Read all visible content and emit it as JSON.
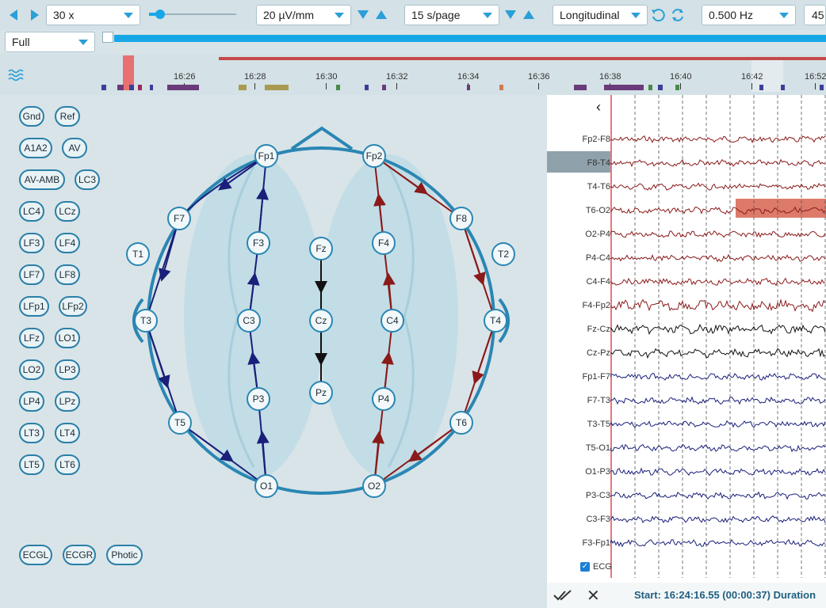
{
  "toolbar": {
    "speed": "30 x",
    "sensitivity": "20 µV/mm",
    "timebase": "15 s/page",
    "montage": "Longitudinal",
    "low_filter": "0.500 Hz",
    "high_filter_partial": "45",
    "view_mode": "Full",
    "slider_value_fraction": 0.1
  },
  "timeline": {
    "ticks": [
      "16:26",
      "16:28",
      "16:30",
      "16:32",
      "16:34",
      "16:36",
      "16:38",
      "16:40",
      "16:42",
      "16:52"
    ]
  },
  "left_buttons": [
    "Gnd",
    "Ref",
    "A1A2",
    "AV",
    "AV-AMB",
    "LC3",
    "LC4",
    "LCz",
    "LF3",
    "LF4",
    "LF7",
    "LF8",
    "LFp1",
    "LFp2",
    "LFz",
    "LO1",
    "LO2",
    "LP3",
    "LP4",
    "LPz",
    "LT3",
    "LT4",
    "LT5",
    "LT6"
  ],
  "bottom_buttons": [
    "ECGL",
    "ECGR",
    "Photic"
  ],
  "electrodes": [
    "Fp1",
    "Fp2",
    "F7",
    "F8",
    "T1",
    "T2",
    "F3",
    "Fz",
    "F4",
    "T3",
    "C3",
    "Cz",
    "C4",
    "T4",
    "P3",
    "Pz",
    "P4",
    "T5",
    "T6",
    "O1",
    "O2"
  ],
  "channels": [
    "Fp2-F8",
    "F8-T4",
    "T4-T6",
    "T6-O2",
    "O2-P4",
    "P4-C4",
    "C4-F4",
    "F4-Fp2",
    "Fz-Cz",
    "Cz-Pz",
    "Fp1-F7",
    "F7-T3",
    "T3-T5",
    "T5-O1",
    "O1-P3",
    "P3-C3",
    "C3-F3",
    "F3-Fp1"
  ],
  "ecg_checkbox": {
    "label": "ECG",
    "checked": true
  },
  "footer": {
    "status": "Start: 16:24:16.55 (00:00:37) Duration"
  },
  "colors": {
    "right_chain": "#8b1a1a",
    "left_chain": "#1a1f7a",
    "center_chain": "#111111",
    "accent": "#18a7e6"
  }
}
